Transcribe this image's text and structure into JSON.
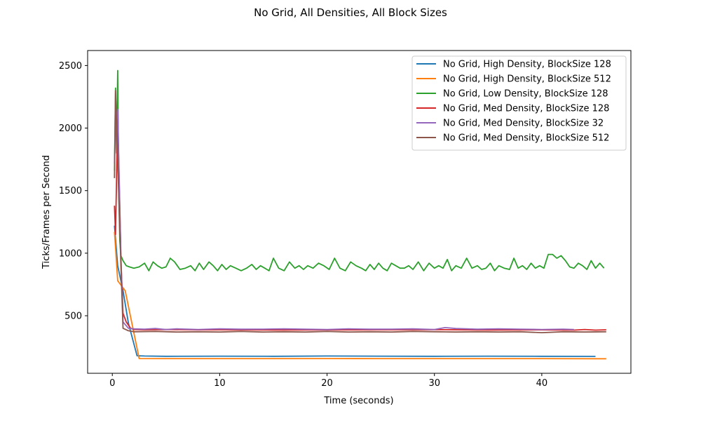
{
  "chart_data": {
    "type": "line",
    "title": "No Grid, All Densities, All Block Sizes",
    "xlabel": "Time (seconds)",
    "ylabel": "Ticks/Frames per Second",
    "xlim": [
      -2.3,
      48.3
    ],
    "ylim": [
      40,
      2620
    ],
    "xticks": [
      0,
      10,
      20,
      30,
      40
    ],
    "yticks": [
      500,
      1000,
      1500,
      2000,
      2500
    ],
    "grid": false,
    "legend_position": "top-right",
    "series": [
      {
        "name": "No Grid, High Density, BlockSize 128",
        "color": "#1f77b4",
        "x": [
          0.2,
          0.5,
          1.0,
          1.5,
          2.3,
          3,
          5,
          10,
          15,
          20,
          25,
          30,
          35,
          40,
          45
        ],
        "y": [
          1220,
          900,
          700,
          440,
          180,
          178,
          176,
          177,
          176,
          178,
          177,
          176,
          177,
          176,
          175
        ]
      },
      {
        "name": "No Grid, High Density, BlockSize 512",
        "color": "#ff7f0e",
        "x": [
          0.2,
          0.5,
          1.2,
          2.5,
          5,
          10,
          15,
          20,
          25,
          30,
          35,
          40,
          46
        ],
        "y": [
          1170,
          780,
          700,
          158,
          157,
          157,
          157,
          158,
          157,
          157,
          157,
          157,
          156
        ]
      },
      {
        "name": "No Grid, Low Density, BlockSize 128",
        "color": "#2ca02c",
        "x": [
          0.2,
          0.3,
          0.4,
          0.5,
          0.6,
          0.7,
          0.8,
          1.0,
          1.3,
          1.6,
          2,
          2.5,
          3,
          3.4,
          3.8,
          4.2,
          4.6,
          5,
          5.4,
          5.8,
          6.3,
          6.8,
          7.3,
          7.7,
          8.1,
          8.5,
          9,
          9.4,
          9.8,
          10.2,
          10.6,
          11,
          11.5,
          12,
          12.5,
          13,
          13.4,
          13.8,
          14.2,
          14.6,
          15,
          15.5,
          16,
          16.5,
          17,
          17.4,
          17.8,
          18.2,
          18.7,
          19.2,
          19.7,
          20.2,
          20.7,
          21.2,
          21.7,
          22.2,
          22.7,
          23.2,
          23.6,
          24,
          24.4,
          24.8,
          25.2,
          25.6,
          26,
          26.4,
          26.8,
          27.2,
          27.6,
          28,
          28.5,
          29,
          29.5,
          30,
          30.4,
          30.8,
          31.2,
          31.6,
          32,
          32.5,
          33,
          33.5,
          34,
          34.4,
          34.8,
          35.2,
          35.6,
          36,
          36.5,
          37,
          37.4,
          37.8,
          38.2,
          38.6,
          39,
          39.4,
          39.8,
          40.2,
          40.6,
          41,
          41.4,
          41.8,
          42.2,
          42.6,
          43,
          43.4,
          43.8,
          44.2,
          44.6,
          45,
          45.4,
          45.8
        ],
        "y": [
          1660,
          2320,
          1800,
          2460,
          1500,
          1100,
          980,
          940,
          900,
          890,
          880,
          890,
          920,
          860,
          930,
          900,
          880,
          890,
          960,
          930,
          870,
          880,
          900,
          860,
          920,
          870,
          930,
          900,
          860,
          910,
          870,
          900,
          880,
          860,
          880,
          910,
          870,
          900,
          880,
          860,
          960,
          880,
          860,
          930,
          880,
          900,
          870,
          900,
          880,
          920,
          900,
          870,
          960,
          880,
          860,
          930,
          900,
          880,
          860,
          910,
          870,
          920,
          880,
          860,
          920,
          900,
          880,
          880,
          900,
          870,
          930,
          860,
          920,
          880,
          900,
          880,
          950,
          860,
          900,
          880,
          960,
          880,
          900,
          870,
          880,
          920,
          860,
          900,
          880,
          870,
          960,
          880,
          900,
          870,
          920,
          880,
          900,
          880,
          990,
          990,
          960,
          980,
          940,
          890,
          880,
          920,
          900,
          870,
          940,
          880,
          920,
          880
        ]
      },
      {
        "name": "No Grid, Med Density, BlockSize 128",
        "color": "#d62728",
        "x": [
          0.2,
          0.3,
          0.5,
          0.8,
          1.0,
          1.3,
          1.7,
          2,
          3,
          5,
          8,
          10,
          15,
          20,
          25,
          30,
          35,
          40,
          43,
          44,
          45,
          46
        ],
        "y": [
          1380,
          1150,
          2100,
          950,
          520,
          450,
          400,
          390,
          388,
          390,
          387,
          388,
          386,
          387,
          388,
          389,
          386,
          387,
          385,
          390,
          385,
          388
        ]
      },
      {
        "name": "No Grid, Med Density, BlockSize 32",
        "color": "#9467bd",
        "x": [
          0.2,
          0.3,
          0.5,
          0.8,
          1.0,
          1.5,
          2,
          3,
          4,
          5,
          6,
          7,
          8,
          10,
          12,
          14,
          16,
          18,
          20,
          22,
          24,
          26,
          28,
          30,
          31,
          32,
          34,
          36,
          38,
          40,
          42,
          43
        ],
        "y": [
          1720,
          2000,
          2150,
          970,
          450,
          400,
          395,
          393,
          398,
          390,
          395,
          392,
          390,
          395,
          392,
          393,
          395,
          392,
          390,
          395,
          392,
          393,
          395,
          390,
          405,
          398,
          392,
          395,
          393,
          390,
          393,
          390
        ]
      },
      {
        "name": "No Grid, Med Density, BlockSize 512",
        "color": "#8c564b",
        "x": [
          0.2,
          0.3,
          0.5,
          0.8,
          1.0,
          1.5,
          2,
          4,
          6,
          8,
          10,
          12,
          14,
          16,
          18,
          20,
          22,
          24,
          26,
          28,
          30,
          32,
          34,
          36,
          38,
          40,
          42,
          44,
          46
        ],
        "y": [
          1600,
          2300,
          1750,
          900,
          400,
          380,
          372,
          375,
          370,
          372,
          370,
          375,
          370,
          372,
          370,
          375,
          370,
          372,
          370,
          375,
          372,
          370,
          372,
          370,
          372,
          365,
          372,
          370,
          372
        ]
      }
    ]
  }
}
